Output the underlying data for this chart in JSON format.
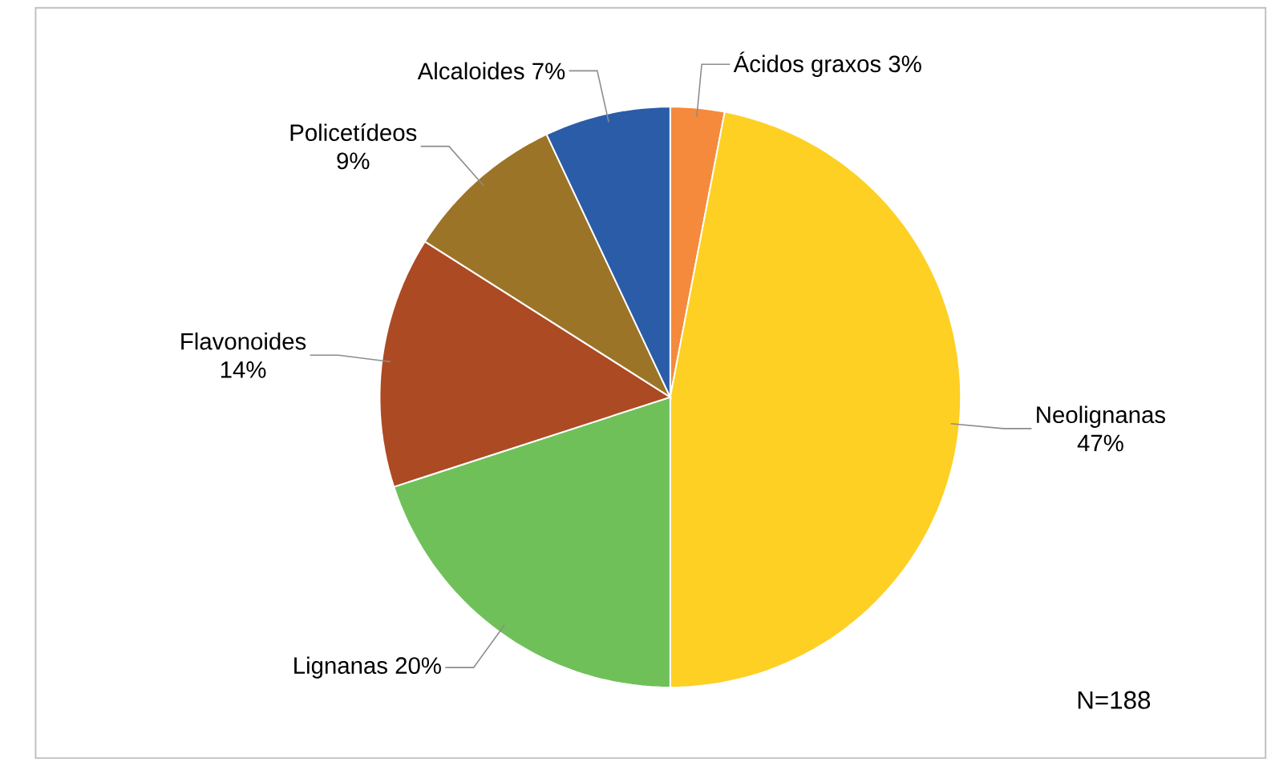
{
  "chart_data": {
    "type": "pie",
    "categories": [
      "Ácidos graxos",
      "Neolignanas",
      "Lignanas",
      "Flavonoides",
      "Policetídeos",
      "Alcaloides"
    ],
    "values": [
      3,
      47,
      20,
      14,
      9,
      7
    ],
    "value_labels": [
      "3%",
      "47%",
      "20%",
      "14%",
      "9%",
      "7%"
    ],
    "colors": [
      "#f58a3c",
      "#fdd023",
      "#70c05a",
      "#ac4a24",
      "#9c7428",
      "#2a5ca8"
    ],
    "annotations": [
      "N=188"
    ]
  }
}
